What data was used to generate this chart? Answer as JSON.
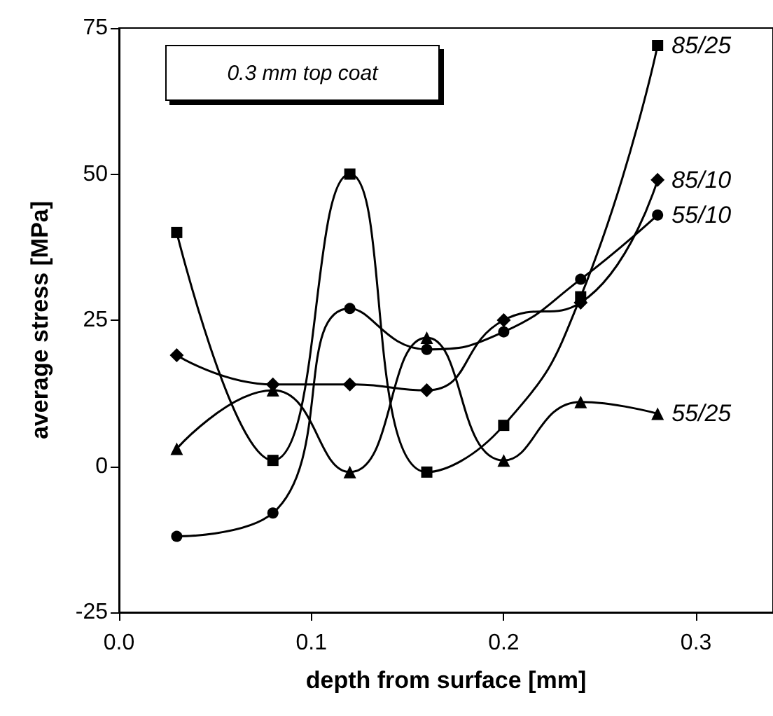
{
  "chart_data": {
    "type": "line",
    "xlabel": "depth from surface [mm]",
    "ylabel": "average stress [MPa]",
    "annotations": [
      "0.3 mm top coat"
    ],
    "x": [
      0.03,
      0.08,
      0.12,
      0.16,
      0.2,
      0.24,
      0.28
    ],
    "series": [
      {
        "name": "85/25",
        "color": "#000000",
        "marker": "square",
        "values": [
          40,
          1,
          50,
          -1,
          7,
          29,
          72
        ]
      },
      {
        "name": "85/10",
        "color": "#000000",
        "marker": "diamond",
        "values": [
          19,
          14,
          14,
          13,
          25,
          28,
          49
        ]
      },
      {
        "name": "55/10",
        "color": "#000000",
        "marker": "circle",
        "values": [
          -12,
          -8,
          27,
          20,
          23,
          32,
          43
        ]
      },
      {
        "name": "55/25",
        "color": "#000000",
        "marker": "triangle",
        "values": [
          3,
          13,
          -1,
          22,
          1,
          11,
          9
        ]
      }
    ],
    "xlim": [
      0,
      0.34
    ],
    "xticks": [
      {
        "value": 0,
        "label": "0.0"
      },
      0.1,
      0.2,
      0.3
    ],
    "ylim": [
      -25,
      75
    ],
    "yticks": [
      -25,
      0,
      25,
      50,
      75
    ],
    "grid": false,
    "legend": false,
    "line_style": "solid"
  }
}
